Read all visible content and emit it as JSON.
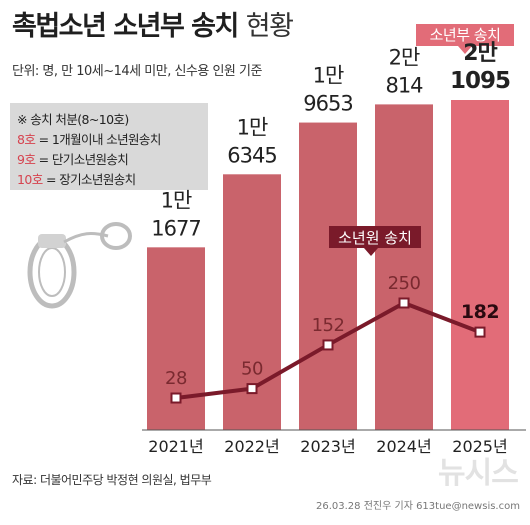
{
  "title": {
    "main": "촉법소년 소년부 송치",
    "suffix": "현황"
  },
  "unit_text": "단위: 명, 만 10세~14세 미만, 신수용 인원 기준",
  "badge_label": "소년부 송치",
  "legend": {
    "heading": "※ 송치 처분(8~10호)",
    "items": [
      {
        "code": "8호",
        "desc": "= 1개월이내 소년원송치"
      },
      {
        "code": "9호",
        "desc": "= 단기소년원송치"
      },
      {
        "code": "10호",
        "desc": "= 장기소년원송치"
      }
    ]
  },
  "line_badge_label": "소년원 송치",
  "source": "자료: 더불어민주당 박정현 의원실, 법무부",
  "footer": "26.03.28 전진우 기자  613tue@newsis.com",
  "watermark": "뉴시스",
  "colors": {
    "bar": "#c9636b",
    "bar_highlight": "#e26c78",
    "line": "#7a1a2a",
    "badge": "#e26c78"
  },
  "chart_data": {
    "type": "bar",
    "categories": [
      "2021년",
      "2022년",
      "2023년",
      "2024년",
      "2025년"
    ],
    "series": [
      {
        "name": "소년부 송치",
        "values": [
          11677,
          16345,
          19653,
          20814,
          21095
        ],
        "labels": [
          [
            "1만",
            "1677"
          ],
          [
            "1만",
            "6345"
          ],
          [
            "1만",
            "9653"
          ],
          [
            "2만",
            "814"
          ],
          [
            "2만",
            "1095"
          ]
        ]
      },
      {
        "name": "소년원 송치",
        "type": "line",
        "values": [
          28,
          50,
          152,
          250,
          182
        ]
      }
    ]
  }
}
